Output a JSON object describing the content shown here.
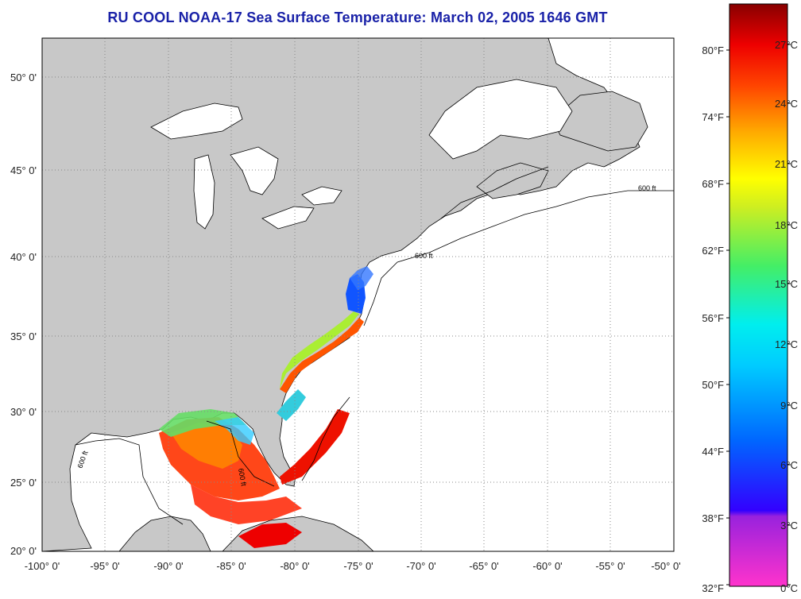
{
  "title": "RU COOL  NOAA-17  Sea Surface Temperature:  March 02, 2005 1646 GMT",
  "lat_labels": [
    "50° 0'",
    "45° 0'",
    "40° 0'",
    "35° 0'",
    "30° 0'",
    "25° 0'",
    "20° 0'"
  ],
  "lon_labels": [
    "-100° 0'",
    "-95° 0'",
    "-90° 0'",
    "-85° 0'",
    "-80° 0'",
    "-75° 0'",
    "-70° 0'",
    "-65° 0'",
    "-60° 0'",
    "-55° 0'",
    "-50° 0'"
  ],
  "contour_label": "600 ft",
  "colorbar": {
    "fahrenheit": [
      "80°F",
      "74°F",
      "68°F",
      "62°F",
      "56°F",
      "50°F",
      "44°F",
      "38°F",
      "32°F"
    ],
    "celsius": [
      "27°C",
      "24°C",
      "21°C",
      "18°C",
      "15°C",
      "12°C",
      "9°C",
      "6°C",
      "3°C",
      "0°C"
    ]
  },
  "colors": {
    "land": "#c8c8c8",
    "water": "#ffffff",
    "title": "#1a22a8"
  }
}
